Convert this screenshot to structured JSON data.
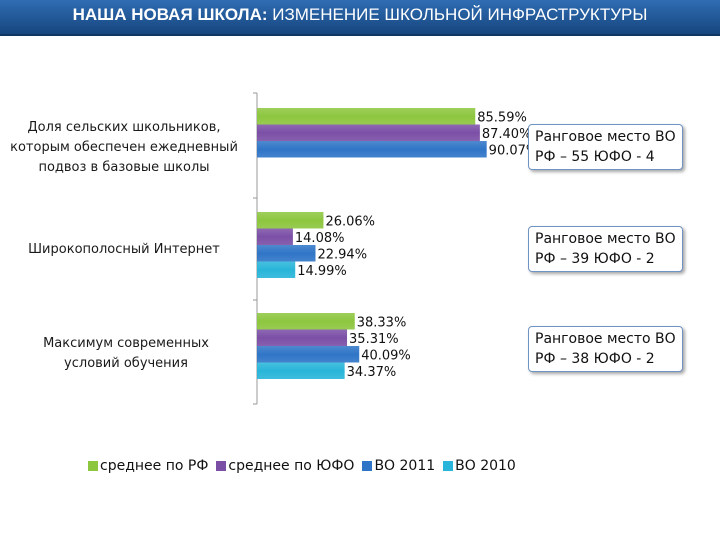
{
  "header": {
    "title_bold": "НАША НОВАЯ ШКОЛА:",
    "title_rest": " ИЗМЕНЕНИЕ ШКОЛЬНОЙ ИНФРАСТРУКТУРЫ"
  },
  "chart_data": {
    "type": "bar",
    "orientation": "horizontal",
    "categories": [
      "Доля сельских школьников, которым обеспечен ежедневный подвоз в базовые школы",
      "Широкополосный Интернет",
      "Максимум современных условий обучения"
    ],
    "category_lines": [
      [
        "Доля сельских школьников,",
        "которым обеспечен ежедневный",
        "подвоз в базовые школы"
      ],
      [
        "Широкополосный Интернет"
      ],
      [
        "Максимум современных",
        "условий обучения"
      ]
    ],
    "series": [
      {
        "name": "среднее по РФ",
        "color": "#8dc63f",
        "values": [
          85.59,
          26.06,
          38.33
        ],
        "labels": [
          "85.59%",
          "26.06%",
          "38.33%"
        ]
      },
      {
        "name": "среднее по ЮФО",
        "color": "#7b4fa6",
        "values": [
          87.4,
          14.08,
          35.31
        ],
        "labels": [
          "87.40%",
          "14.08%",
          "35.31%"
        ]
      },
      {
        "name": "ВО 2011",
        "color": "#2f75c7",
        "values": [
          90.07,
          22.94,
          40.09
        ],
        "labels": [
          "90.07%",
          "22.94%",
          "40.09%"
        ]
      },
      {
        "name": "ВО 2010",
        "color": "#28b5d9",
        "values": [
          null,
          14.99,
          34.37
        ],
        "labels": [
          null,
          "14.99%",
          "34.37%"
        ]
      }
    ],
    "xlim": [
      0,
      100
    ],
    "grid": false,
    "legend_position": "bottom"
  },
  "annotations": [
    {
      "line1": "Ранговое место ВО",
      "line2": "РФ – 55  ЮФО - 4"
    },
    {
      "line1": "Ранговое место ВО",
      "line2": "РФ – 39  ЮФО - 2"
    },
    {
      "line1": "Ранговое место ВО",
      "line2": "РФ – 38  ЮФО - 2"
    }
  ]
}
